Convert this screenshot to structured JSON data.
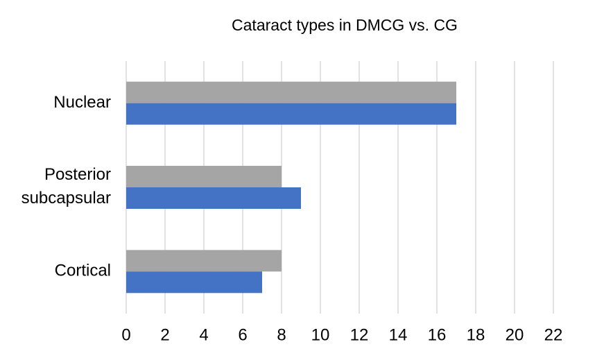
{
  "chart_data": {
    "type": "hbar",
    "title": "Cataract types in DMCG vs. CG",
    "categories": [
      "Nuclear",
      "Posterior subcapsular",
      "Cortical"
    ],
    "series": [
      {
        "color": "#a5a5a5",
        "values": [
          17,
          8,
          8
        ]
      },
      {
        "color": "#4472c4",
        "values": [
          17,
          9,
          7
        ]
      }
    ],
    "xlim": [
      0,
      22
    ],
    "xticks": [
      0,
      2,
      4,
      6,
      8,
      10,
      12,
      14,
      16,
      18,
      20,
      22
    ],
    "grid": true
  }
}
